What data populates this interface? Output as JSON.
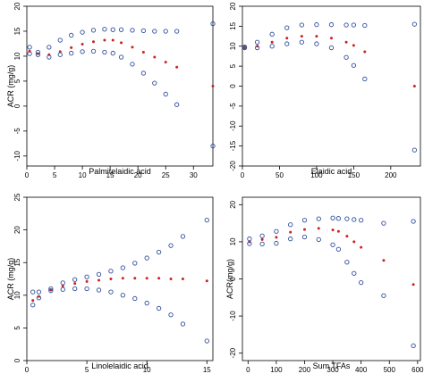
{
  "chart_data": [
    {
      "type": "scatter",
      "title": "",
      "xlabel": "Palmitelaidic acid",
      "ylabel": "ACR (mg/g)",
      "xlim": [
        0,
        33.5
      ],
      "ylim": [
        -12,
        20
      ],
      "xticks": [
        0,
        5,
        10,
        15,
        20,
        25,
        30
      ],
      "yticks": [
        -10,
        -5,
        0,
        5,
        10,
        15,
        20
      ],
      "series": [
        {
          "role": "upper",
          "color": "#2f4f9e",
          "x": [
            0.5,
            2,
            4,
            6,
            8,
            10,
            12,
            14,
            15.5,
            17,
            19,
            21,
            23,
            25,
            27,
            33.5
          ],
          "y": [
            10.5,
            10.8,
            11.8,
            13.2,
            14.2,
            14.8,
            15.2,
            15.4,
            15.3,
            15.3,
            15.2,
            15.1,
            15.0,
            15.0,
            15.0,
            16.5
          ]
        },
        {
          "role": "fit",
          "color": "#cc2222",
          "x": [
            0.5,
            2,
            4,
            6,
            8,
            10,
            12,
            14,
            15.5,
            17,
            19,
            21,
            23,
            25,
            27,
            33.5
          ],
          "y": [
            11.0,
            10.5,
            10.3,
            10.9,
            11.7,
            12.4,
            12.9,
            13.2,
            13.2,
            12.7,
            11.8,
            10.8,
            9.8,
            8.8,
            7.8,
            4.0
          ]
        },
        {
          "role": "lower",
          "color": "#2f4f9e",
          "x": [
            0.5,
            2,
            4,
            6,
            8,
            10,
            12,
            14,
            15.5,
            17,
            19,
            21,
            23,
            25,
            27,
            33.5
          ],
          "y": [
            11.8,
            10.3,
            9.8,
            10.3,
            10.6,
            10.9,
            11.0,
            10.8,
            10.6,
            9.8,
            8.4,
            6.6,
            4.6,
            2.4,
            0.3,
            -8.0
          ]
        }
      ]
    },
    {
      "type": "scatter",
      "title": "",
      "xlabel": "Elaidic acid",
      "ylabel": "",
      "xlim": [
        0,
        240
      ],
      "ylim": [
        -20,
        20
      ],
      "xticks": [
        0,
        50,
        100,
        150,
        200
      ],
      "yticks": [
        -20,
        -15,
        -10,
        -5,
        0,
        5,
        10,
        15,
        20
      ],
      "series": [
        {
          "role": "upper",
          "color": "#2f4f9e",
          "x": [
            3,
            20,
            40,
            60,
            80,
            100,
            120,
            140,
            150,
            165,
            232
          ],
          "y": [
            9.8,
            11.0,
            13.0,
            14.6,
            15.3,
            15.4,
            15.4,
            15.3,
            15.3,
            15.2,
            15.5
          ]
        },
        {
          "role": "fit",
          "color": "#cc2222",
          "x": [
            3,
            20,
            40,
            60,
            80,
            100,
            120,
            140,
            150,
            165,
            232
          ],
          "y": [
            9.7,
            10.0,
            11.0,
            12.0,
            12.5,
            12.5,
            12.0,
            11.0,
            10.2,
            8.6,
            0.0
          ]
        },
        {
          "role": "lower",
          "color": "#2f4f9e",
          "x": [
            3,
            20,
            40,
            60,
            80,
            100,
            120,
            140,
            150,
            165,
            232
          ],
          "y": [
            9.6,
            9.6,
            10.0,
            10.6,
            11.0,
            10.6,
            9.6,
            7.2,
            5.2,
            1.8,
            -16.0
          ]
        }
      ]
    },
    {
      "type": "scatter",
      "title": "",
      "xlabel": "Linolelaidic acid",
      "ylabel": "ACR (mg/g)",
      "xlim": [
        0,
        15.5
      ],
      "ylim": [
        0,
        25
      ],
      "xticks": [
        0,
        5,
        10,
        15
      ],
      "yticks": [
        0,
        5,
        10,
        15,
        20,
        25
      ],
      "series": [
        {
          "role": "upper",
          "color": "#2f4f9e",
          "x": [
            0.5,
            1,
            2,
            3,
            4,
            5,
            6,
            7,
            8,
            9,
            10,
            11,
            12,
            13,
            15
          ],
          "y": [
            8.5,
            9.6,
            11.0,
            11.9,
            12.4,
            12.8,
            13.2,
            13.7,
            14.2,
            14.9,
            15.7,
            16.6,
            17.6,
            19.0,
            21.5
          ]
        },
        {
          "role": "fit",
          "color": "#cc2222",
          "x": [
            0.5,
            1,
            2,
            3,
            4,
            5,
            6,
            7,
            8,
            9,
            10,
            11,
            12,
            13,
            15
          ],
          "y": [
            9.2,
            9.8,
            10.8,
            11.4,
            11.8,
            12.1,
            12.3,
            12.5,
            12.6,
            12.6,
            12.6,
            12.6,
            12.5,
            12.5,
            12.2
          ]
        },
        {
          "role": "lower",
          "color": "#2f4f9e",
          "x": [
            0.5,
            1,
            2,
            3,
            4,
            5,
            6,
            7,
            8,
            9,
            10,
            11,
            12,
            13,
            15
          ],
          "y": [
            10.5,
            10.5,
            10.7,
            10.9,
            11.0,
            11.0,
            10.8,
            10.5,
            10.0,
            9.5,
            8.8,
            8.0,
            7.0,
            5.6,
            3.0
          ]
        }
      ]
    },
    {
      "type": "scatter",
      "title": "",
      "xlabel": "Sum TFAs",
      "ylabel": "ACR(mg/g)",
      "xlim": [
        -20,
        610
      ],
      "ylim": [
        -22,
        22
      ],
      "xticks": [
        0,
        100,
        200,
        300,
        400,
        500,
        600
      ],
      "yticks": [
        -20,
        -10,
        0,
        10,
        20
      ],
      "series": [
        {
          "role": "upper",
          "color": "#2f4f9e",
          "x": [
            5,
            50,
            100,
            150,
            200,
            250,
            300,
            320,
            350,
            375,
            400,
            480,
            585
          ],
          "y": [
            10.8,
            11.6,
            12.8,
            14.6,
            15.8,
            16.2,
            16.4,
            16.3,
            16.2,
            16.0,
            15.8,
            15.0,
            15.5
          ]
        },
        {
          "role": "fit",
          "color": "#cc2222",
          "x": [
            5,
            50,
            100,
            150,
            200,
            250,
            300,
            320,
            350,
            375,
            400,
            480,
            585
          ],
          "y": [
            10.0,
            10.6,
            11.2,
            12.6,
            13.3,
            13.6,
            13.2,
            12.8,
            11.5,
            10.0,
            8.5,
            5.0,
            -1.5
          ]
        },
        {
          "role": "lower",
          "color": "#2f4f9e",
          "x": [
            5,
            50,
            100,
            150,
            200,
            250,
            300,
            320,
            350,
            375,
            400,
            480,
            585
          ],
          "y": [
            9.5,
            9.4,
            9.6,
            10.8,
            11.3,
            10.6,
            9.2,
            8.0,
            4.5,
            1.5,
            -1.0,
            -4.5,
            -18.0
          ]
        }
      ]
    }
  ]
}
